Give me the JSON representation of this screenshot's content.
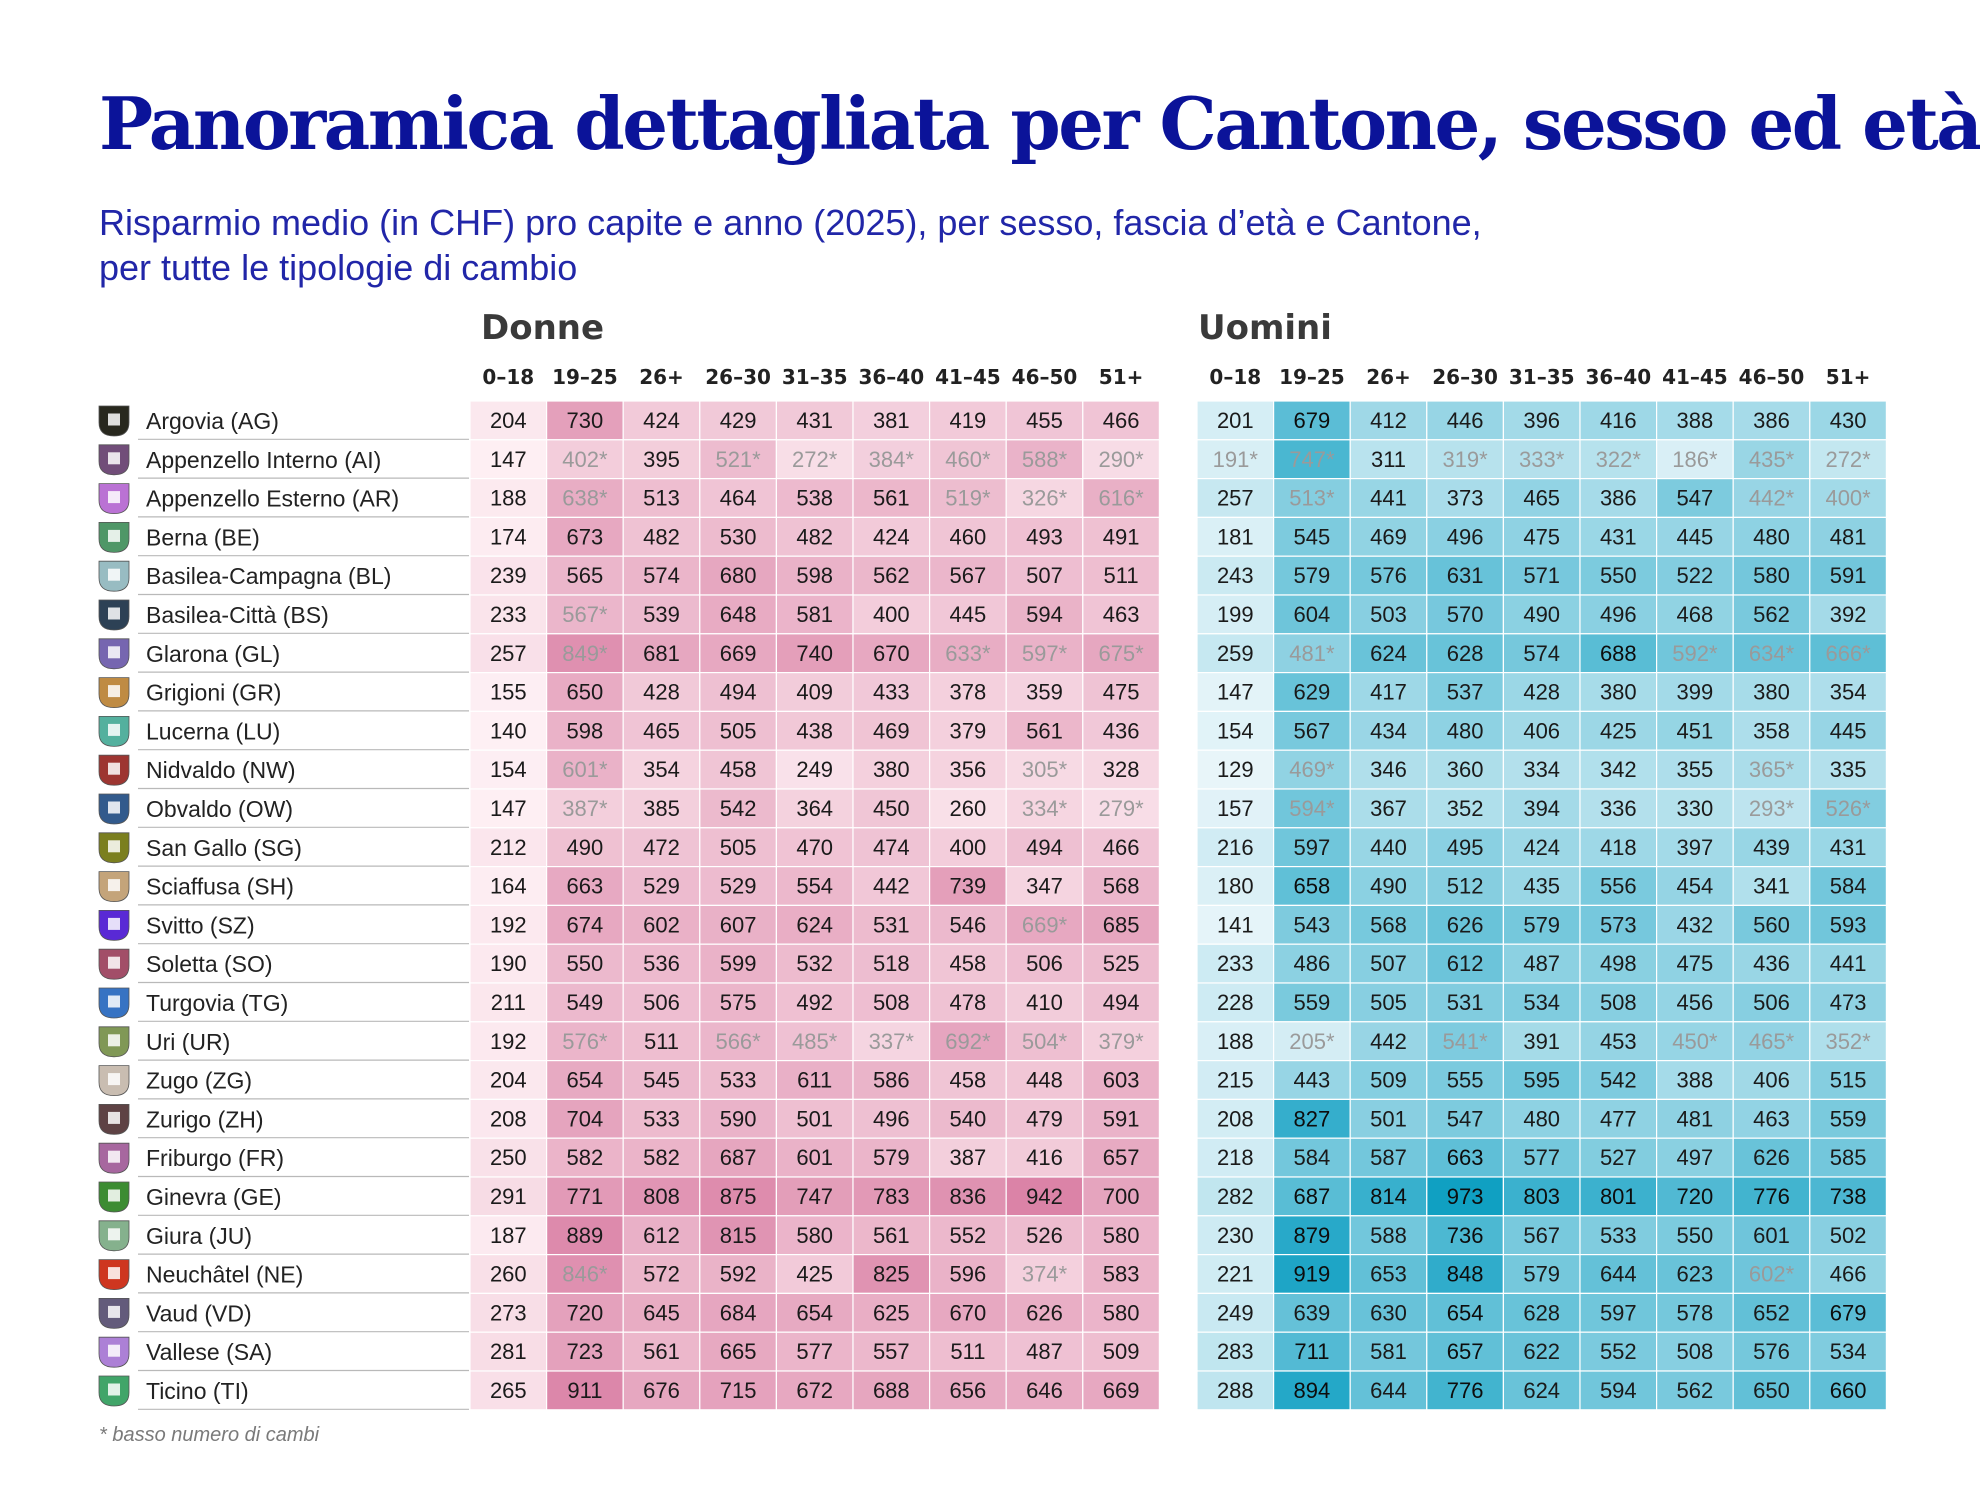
{
  "title": "Panoramica dettagliata per Cantone, sesso ed età",
  "subtitle_line1": "Risparmio medio (in CHF) pro capite e anno (2025), per sesso, fascia d’età e Cantone,",
  "subtitle_line2": "per tutte le tipologie di cambio",
  "footnote": "* basso numero di cambi",
  "colors": {
    "title": "#0b1399",
    "subtitle": "#2126a8",
    "donne_scale": [
      "#fff3f6",
      "#d97ea3"
    ],
    "uomini_scale": [
      "#eaf6fa",
      "#0e9fc2"
    ],
    "low_count_text": "#9a9a9a"
  },
  "chart_data": {
    "type": "heatmap",
    "title": "Panoramica dettagliata per Cantone, sesso ed età",
    "value_unit": "CHF",
    "age_groups": [
      "0–18",
      "19–25",
      "26+",
      "26–30",
      "31–35",
      "36–40",
      "41–45",
      "46–50",
      "51+"
    ],
    "low_count_marker": "*",
    "cantons": [
      {
        "name": "Argovia (AG)",
        "crest_icon": "crest-argovia-icon"
      },
      {
        "name": "Appenzello Interno (AI)",
        "crest_icon": "crest-appenzello-interno-icon"
      },
      {
        "name": "Appenzello Esterno (AR)",
        "crest_icon": "crest-appenzello-esterno-icon"
      },
      {
        "name": "Berna (BE)",
        "crest_icon": "crest-berna-icon"
      },
      {
        "name": "Basilea-Campagna (BL)",
        "crest_icon": "crest-basilea-campagna-icon"
      },
      {
        "name": "Basilea-Città (BS)",
        "crest_icon": "crest-basilea-citta-icon"
      },
      {
        "name": "Glarona (GL)",
        "crest_icon": "crest-glarona-icon"
      },
      {
        "name": "Grigioni (GR)",
        "crest_icon": "crest-grigioni-icon"
      },
      {
        "name": "Lucerna (LU)",
        "crest_icon": "crest-lucerna-icon"
      },
      {
        "name": "Nidvaldo (NW)",
        "crest_icon": "crest-nidvaldo-icon"
      },
      {
        "name": "Obvaldo (OW)",
        "crest_icon": "crest-obvaldo-icon"
      },
      {
        "name": "San Gallo (SG)",
        "crest_icon": "crest-san-gallo-icon"
      },
      {
        "name": "Sciaffusa (SH)",
        "crest_icon": "crest-sciaffusa-icon"
      },
      {
        "name": "Svitto (SZ)",
        "crest_icon": "crest-svitto-icon"
      },
      {
        "name": "Soletta (SO)",
        "crest_icon": "crest-soletta-icon"
      },
      {
        "name": "Turgovia (TG)",
        "crest_icon": "crest-turgovia-icon"
      },
      {
        "name": "Uri (UR)",
        "crest_icon": "crest-uri-icon"
      },
      {
        "name": "Zugo (ZG)",
        "crest_icon": "crest-zugo-icon"
      },
      {
        "name": "Zurigo (ZH)",
        "crest_icon": "crest-zurigo-icon"
      },
      {
        "name": "Friburgo (FR)",
        "crest_icon": "crest-friburgo-icon"
      },
      {
        "name": "Ginevra (GE)",
        "crest_icon": "crest-ginevra-icon"
      },
      {
        "name": "Giura (JU)",
        "crest_icon": "crest-giura-icon"
      },
      {
        "name": "Neuchâtel (NE)",
        "crest_icon": "crest-neuchatel-icon"
      },
      {
        "name": "Vaud (VD)",
        "crest_icon": "crest-vaud-icon"
      },
      {
        "name": "Vallese (SA)",
        "crest_icon": "crest-vallese-icon"
      },
      {
        "name": "Ticino (TI)",
        "crest_icon": "crest-ticino-icon"
      }
    ],
    "series": [
      {
        "name": "Donne",
        "values": [
          [
            "204",
            "730",
            "424",
            "429",
            "431",
            "381",
            "419",
            "455",
            "466"
          ],
          [
            "147",
            "402*",
            "395",
            "521*",
            "272*",
            "384*",
            "460*",
            "588*",
            "290*"
          ],
          [
            "188",
            "638*",
            "513",
            "464",
            "538",
            "561",
            "519*",
            "326*",
            "616*"
          ],
          [
            "174",
            "673",
            "482",
            "530",
            "482",
            "424",
            "460",
            "493",
            "491"
          ],
          [
            "239",
            "565",
            "574",
            "680",
            "598",
            "562",
            "567",
            "507",
            "511"
          ],
          [
            "233",
            "567*",
            "539",
            "648",
            "581",
            "400",
            "445",
            "594",
            "463"
          ],
          [
            "257",
            "849*",
            "681",
            "669",
            "740",
            "670",
            "633*",
            "597*",
            "675*"
          ],
          [
            "155",
            "650",
            "428",
            "494",
            "409",
            "433",
            "378",
            "359",
            "475"
          ],
          [
            "140",
            "598",
            "465",
            "505",
            "438",
            "469",
            "379",
            "561",
            "436"
          ],
          [
            "154",
            "601*",
            "354",
            "458",
            "249",
            "380",
            "356",
            "305*",
            "328"
          ],
          [
            "147",
            "387*",
            "385",
            "542",
            "364",
            "450",
            "260",
            "334*",
            "279*"
          ],
          [
            "212",
            "490",
            "472",
            "505",
            "470",
            "474",
            "400",
            "494",
            "466"
          ],
          [
            "164",
            "663",
            "529",
            "529",
            "554",
            "442",
            "739",
            "347",
            "568"
          ],
          [
            "192",
            "674",
            "602",
            "607",
            "624",
            "531",
            "546",
            "669*",
            "685"
          ],
          [
            "190",
            "550",
            "536",
            "599",
            "532",
            "518",
            "458",
            "506",
            "525"
          ],
          [
            "211",
            "549",
            "506",
            "575",
            "492",
            "508",
            "478",
            "410",
            "494"
          ],
          [
            "192",
            "576*",
            "511",
            "566*",
            "485*",
            "337*",
            "692*",
            "504*",
            "379*"
          ],
          [
            "204",
            "654",
            "545",
            "533",
            "611",
            "586",
            "458",
            "448",
            "603"
          ],
          [
            "208",
            "704",
            "533",
            "590",
            "501",
            "496",
            "540",
            "479",
            "591"
          ],
          [
            "250",
            "582",
            "582",
            "687",
            "601",
            "579",
            "387",
            "416",
            "657"
          ],
          [
            "291",
            "771",
            "808",
            "875",
            "747",
            "783",
            "836",
            "942",
            "700"
          ],
          [
            "187",
            "889",
            "612",
            "815",
            "580",
            "561",
            "552",
            "526",
            "580"
          ],
          [
            "260",
            "846*",
            "572",
            "592",
            "425",
            "825",
            "596",
            "374*",
            "583"
          ],
          [
            "273",
            "720",
            "645",
            "684",
            "654",
            "625",
            "670",
            "626",
            "580"
          ],
          [
            "281",
            "723",
            "561",
            "665",
            "577",
            "557",
            "511",
            "487",
            "509"
          ],
          [
            "265",
            "911",
            "676",
            "715",
            "672",
            "688",
            "656",
            "646",
            "669"
          ]
        ]
      },
      {
        "name": "Uomini",
        "values": [
          [
            "201",
            "679",
            "412",
            "446",
            "396",
            "416",
            "388",
            "386",
            "430"
          ],
          [
            "191*",
            "747*",
            "311",
            "319*",
            "333*",
            "322*",
            "186*",
            "435*",
            "272*"
          ],
          [
            "257",
            "513*",
            "441",
            "373",
            "465",
            "386",
            "547",
            "442*",
            "400*"
          ],
          [
            "181",
            "545",
            "469",
            "496",
            "475",
            "431",
            "445",
            "480",
            "481"
          ],
          [
            "243",
            "579",
            "576",
            "631",
            "571",
            "550",
            "522",
            "580",
            "591"
          ],
          [
            "199",
            "604",
            "503",
            "570",
            "490",
            "496",
            "468",
            "562",
            "392"
          ],
          [
            "259",
            "481*",
            "624",
            "628",
            "574",
            "688",
            "592*",
            "634*",
            "666*"
          ],
          [
            "147",
            "629",
            "417",
            "537",
            "428",
            "380",
            "399",
            "380",
            "354"
          ],
          [
            "154",
            "567",
            "434",
            "480",
            "406",
            "425",
            "451",
            "358",
            "445"
          ],
          [
            "129",
            "469*",
            "346",
            "360",
            "334",
            "342",
            "355",
            "365*",
            "335"
          ],
          [
            "157",
            "594*",
            "367",
            "352",
            "394",
            "336",
            "330",
            "293*",
            "526*"
          ],
          [
            "216",
            "597",
            "440",
            "495",
            "424",
            "418",
            "397",
            "439",
            "431"
          ],
          [
            "180",
            "658",
            "490",
            "512",
            "435",
            "556",
            "454",
            "341",
            "584"
          ],
          [
            "141",
            "543",
            "568",
            "626",
            "579",
            "573",
            "432",
            "560",
            "593"
          ],
          [
            "233",
            "486",
            "507",
            "612",
            "487",
            "498",
            "475",
            "436",
            "441"
          ],
          [
            "228",
            "559",
            "505",
            "531",
            "534",
            "508",
            "456",
            "506",
            "473"
          ],
          [
            "188",
            "205*",
            "442",
            "541*",
            "391",
            "453",
            "450*",
            "465*",
            "352*"
          ],
          [
            "215",
            "443",
            "509",
            "555",
            "595",
            "542",
            "388",
            "406",
            "515"
          ],
          [
            "208",
            "827",
            "501",
            "547",
            "480",
            "477",
            "481",
            "463",
            "559"
          ],
          [
            "218",
            "584",
            "587",
            "663",
            "577",
            "527",
            "497",
            "626",
            "585"
          ],
          [
            "282",
            "687",
            "814",
            "973",
            "803",
            "801",
            "720",
            "776",
            "738"
          ],
          [
            "230",
            "879",
            "588",
            "736",
            "567",
            "533",
            "550",
            "601",
            "502"
          ],
          [
            "221",
            "919",
            "653",
            "848",
            "579",
            "644",
            "623",
            "602*",
            "466"
          ],
          [
            "249",
            "639",
            "630",
            "654",
            "628",
            "597",
            "578",
            "652",
            "679"
          ],
          [
            "283",
            "711",
            "581",
            "657",
            "622",
            "552",
            "508",
            "576",
            "534"
          ],
          [
            "288",
            "894",
            "644",
            "776",
            "624",
            "594",
            "562",
            "650",
            "660"
          ]
        ]
      }
    ]
  }
}
